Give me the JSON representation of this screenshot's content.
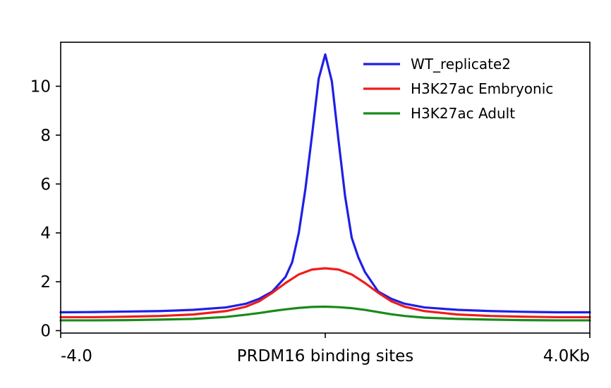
{
  "chart_data": {
    "type": "line",
    "title": "",
    "xlabel": "",
    "ylabel": "",
    "x_tick_labels": [
      "-4.0",
      "PRDM16 binding sites",
      "4.0Kb"
    ],
    "x_tick_positions": [
      -4.0,
      0,
      4.0
    ],
    "xlim": [
      -4.0,
      4.0
    ],
    "ylim": [
      -0.1,
      11.8
    ],
    "y_ticks": [
      0,
      2,
      4,
      6,
      8,
      10
    ],
    "legend_position": "top-right",
    "grid": false,
    "series": [
      {
        "name": "WT_replicate2",
        "color": "#1f1fe6",
        "x": [
          -4.0,
          -3.5,
          -3.0,
          -2.5,
          -2.0,
          -1.5,
          -1.2,
          -1.0,
          -0.8,
          -0.6,
          -0.5,
          -0.4,
          -0.3,
          -0.2,
          -0.1,
          0.0,
          0.1,
          0.2,
          0.3,
          0.4,
          0.5,
          0.6,
          0.8,
          1.0,
          1.2,
          1.5,
          2.0,
          2.5,
          3.0,
          3.5,
          4.0
        ],
        "y": [
          0.75,
          0.76,
          0.78,
          0.8,
          0.85,
          0.95,
          1.1,
          1.3,
          1.6,
          2.2,
          2.8,
          4.0,
          5.8,
          8.0,
          10.3,
          11.3,
          10.2,
          7.8,
          5.5,
          3.8,
          3.0,
          2.4,
          1.6,
          1.3,
          1.1,
          0.95,
          0.85,
          0.8,
          0.77,
          0.75,
          0.75
        ]
      },
      {
        "name": "H3K27ac Embryonic",
        "color": "#ee1c1c",
        "x": [
          -4.0,
          -3.5,
          -3.0,
          -2.5,
          -2.0,
          -1.5,
          -1.2,
          -1.0,
          -0.8,
          -0.6,
          -0.4,
          -0.2,
          0.0,
          0.2,
          0.4,
          0.6,
          0.8,
          1.0,
          1.2,
          1.5,
          2.0,
          2.5,
          3.0,
          3.5,
          4.0
        ],
        "y": [
          0.55,
          0.55,
          0.57,
          0.6,
          0.66,
          0.8,
          0.98,
          1.2,
          1.55,
          1.95,
          2.3,
          2.5,
          2.55,
          2.5,
          2.3,
          1.95,
          1.55,
          1.2,
          0.98,
          0.8,
          0.66,
          0.6,
          0.57,
          0.55,
          0.55
        ]
      },
      {
        "name": "H3K27ac Adult",
        "color": "#1a8a1a",
        "x": [
          -4.0,
          -3.5,
          -3.0,
          -2.5,
          -2.0,
          -1.5,
          -1.2,
          -1.0,
          -0.8,
          -0.6,
          -0.4,
          -0.2,
          0.0,
          0.2,
          0.4,
          0.6,
          0.8,
          1.0,
          1.2,
          1.5,
          2.0,
          2.5,
          3.0,
          3.5,
          4.0
        ],
        "y": [
          0.42,
          0.42,
          0.43,
          0.45,
          0.48,
          0.56,
          0.65,
          0.72,
          0.8,
          0.87,
          0.93,
          0.97,
          0.98,
          0.96,
          0.92,
          0.85,
          0.76,
          0.67,
          0.6,
          0.53,
          0.48,
          0.45,
          0.43,
          0.42,
          0.42
        ]
      }
    ]
  }
}
